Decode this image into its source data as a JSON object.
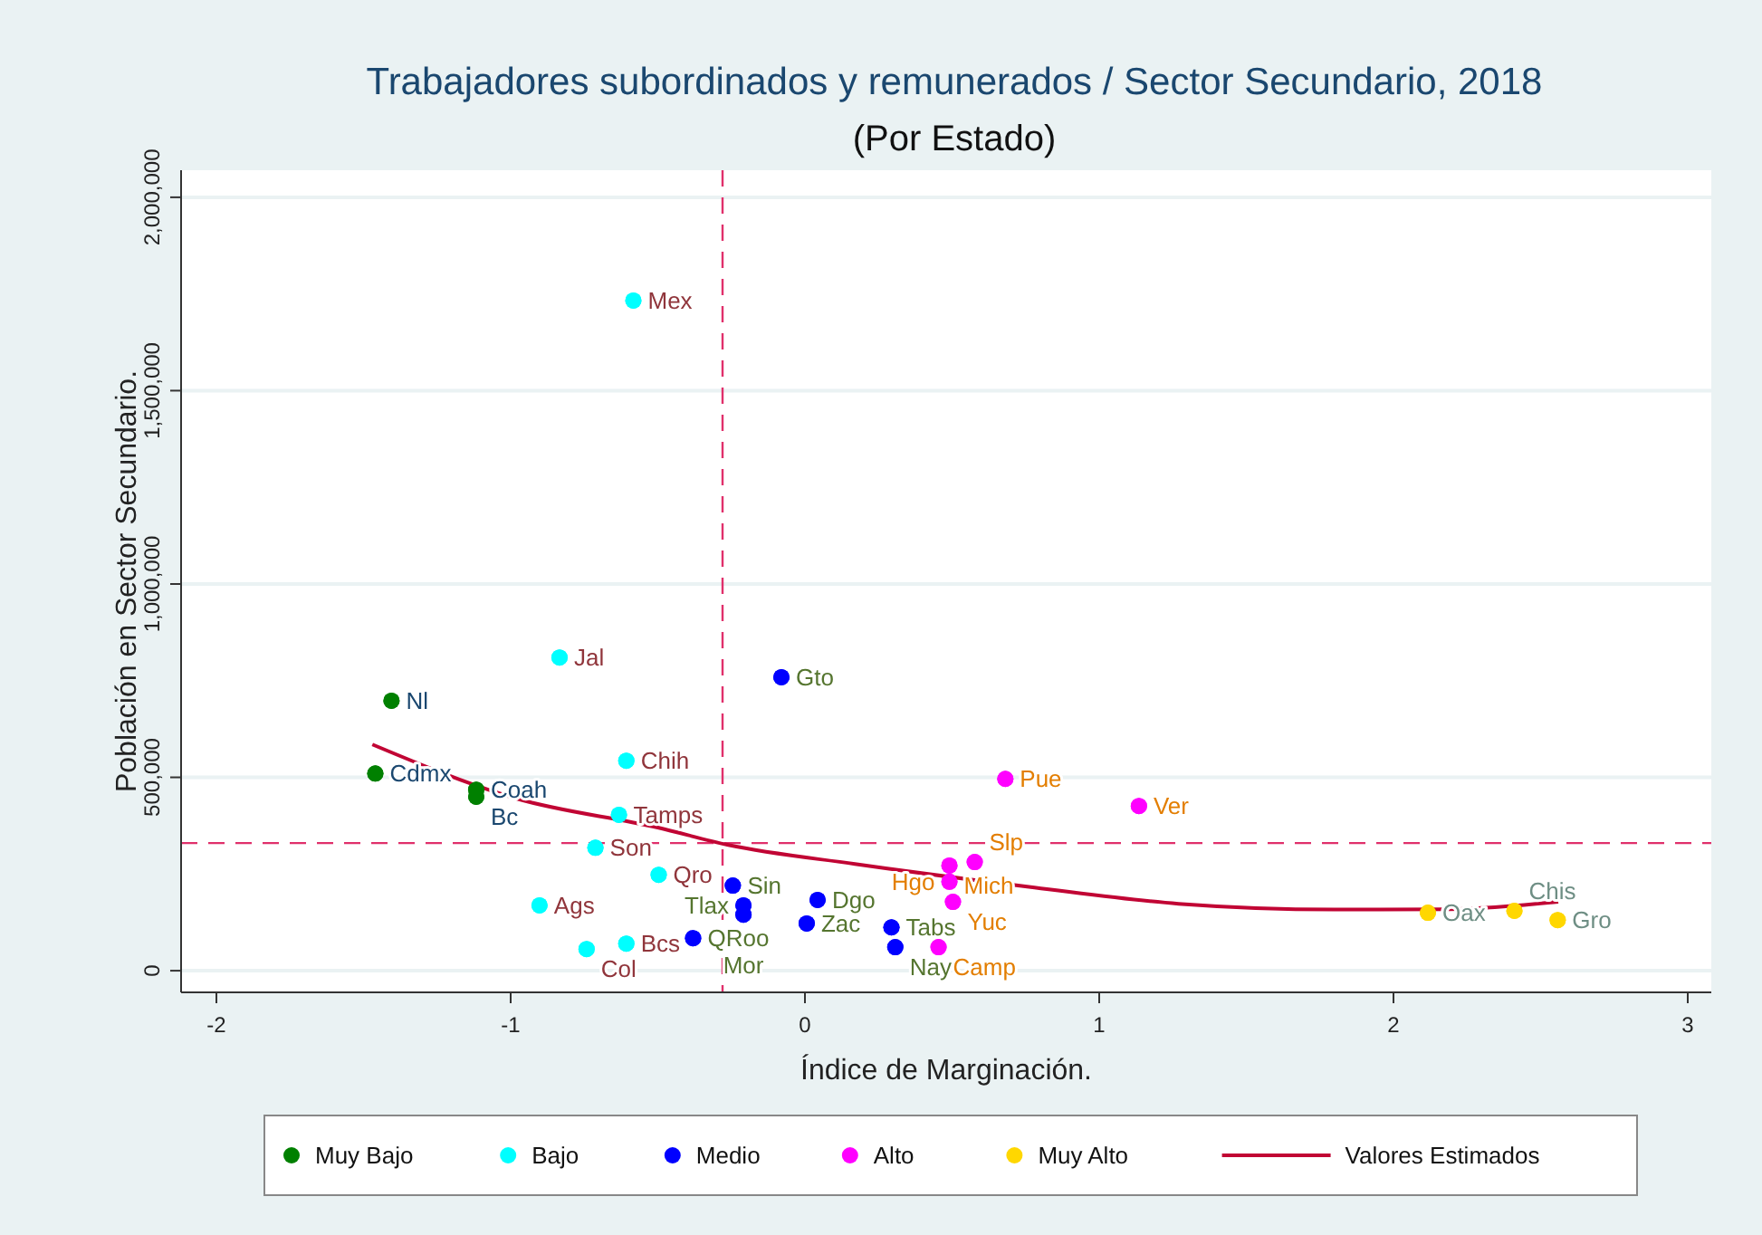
{
  "chart_data": {
    "type": "scatter",
    "title": "Trabajadores subordinados y remunerados / Sector Secundario, 2018",
    "subtitle": "(Por Estado)",
    "xlabel": "Índice de Marginación.",
    "ylabel": "Población en Sector Secundario.",
    "xlim": [
      -2.12,
      3.08
    ],
    "ylim": [
      -56000,
      2070000
    ],
    "xticks": [
      -2,
      -1,
      0,
      1,
      2,
      3
    ],
    "yticks": [
      {
        "value": 0,
        "label": "0"
      },
      {
        "value": 500000,
        "label": "500,000"
      },
      {
        "value": 1000000,
        "label": "1,000,000"
      },
      {
        "value": 1500000,
        "label": "1,500,000"
      },
      {
        "value": 2000000,
        "label": "2,000,000"
      }
    ],
    "grid": "y",
    "legend": "bottom",
    "marker": "circle",
    "series": [
      {
        "name": "Muy Bajo",
        "color": "#008000",
        "x": [
          -1.405,
          -1.46,
          -1.117,
          -1.117
        ],
        "values": [
          698000,
          510000,
          468000,
          450000
        ],
        "value_labels": [
          "Nl",
          "Cdmx",
          "Coah",
          "Bc"
        ]
      },
      {
        "name": "Bajo",
        "color": "#00ffff",
        "x": [
          -0.834,
          -0.583,
          -0.607,
          -0.632,
          -0.712,
          -0.497,
          -0.902,
          -0.742,
          -0.607
        ],
        "values": [
          810000,
          1733000,
          543000,
          403000,
          318000,
          248000,
          169000,
          56000,
          70000
        ],
        "value_labels": [
          "Jal",
          "Mex",
          "Chih",
          "Tamps",
          "Son",
          "Qro",
          "Ags",
          "Col",
          "Bcs"
        ]
      },
      {
        "name": "Medio",
        "color": "#0000ff",
        "x": [
          -0.08,
          -0.38,
          -0.245,
          -0.209,
          -0.209,
          0.043,
          0.006,
          0.294,
          0.307
        ],
        "values": [
          759000,
          84000,
          220000,
          169000,
          145000,
          183000,
          122000,
          112000,
          61000
        ],
        "value_labels": [
          "Gto",
          "QRoo",
          "Sin",
          "Tlax",
          "Mor",
          "Dgo",
          "Zac",
          "Tabs",
          "Nay"
        ]
      },
      {
        "name": "Alto",
        "color": "#ff00ff",
        "x": [
          0.681,
          1.135,
          0.491,
          0.577,
          0.491,
          0.503,
          0.454
        ],
        "values": [
          496000,
          426000,
          272000,
          281000,
          230000,
          178000,
          61000
        ],
        "value_labels": [
          "Pue",
          "Ver",
          "Mich",
          "Slp",
          "Hgo",
          "Yuc",
          "Camp"
        ]
      },
      {
        "name": "Muy Alto",
        "color": "#ffd700",
        "x": [
          2.117,
          2.411,
          2.558
        ],
        "values": [
          150000,
          155000,
          131000
        ],
        "value_labels": [
          "Oax",
          "Chis",
          "Gro"
        ]
      },
      {
        "name": "Valores Estimados",
        "type": "line",
        "marker": "none",
        "color": "#c10534",
        "x": [
          -1.47,
          -0.98,
          -0.5,
          -0.26,
          0.17,
          0.78,
          1.27,
          1.8,
          2.19,
          2.56
        ],
        "values": [
          585000,
          445000,
          370000,
          325000,
          276000,
          215000,
          173000,
          158000,
          159000,
          178000
        ]
      }
    ],
    "ref_lines": [
      {
        "axis": "x",
        "value": -0.28,
        "color": "#e0306b",
        "line_style": "dashed"
      },
      {
        "axis": "y",
        "value": 330000,
        "color": "#e0306b",
        "line_style": "dashed"
      }
    ]
  }
}
